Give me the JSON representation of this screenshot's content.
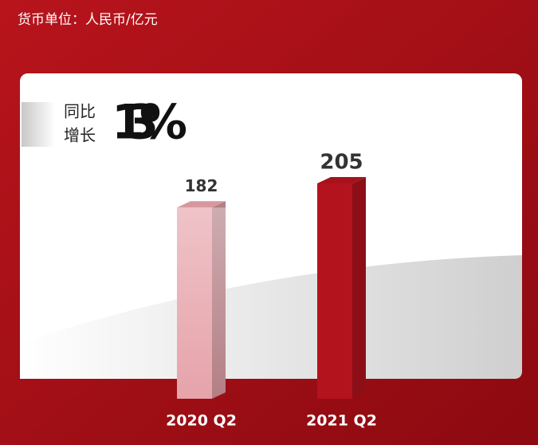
{
  "chart_data": {
    "type": "bar3d",
    "unit_note": "货币单位：人民币/亿元",
    "annotation_lines": [
      "同比",
      "增长"
    ],
    "annotation_value": "13%",
    "categories": [
      "2020 Q2",
      "2021 Q2"
    ],
    "values": [
      182,
      205
    ],
    "colors": [
      "#e6a3aa",
      "#b3131d"
    ]
  }
}
